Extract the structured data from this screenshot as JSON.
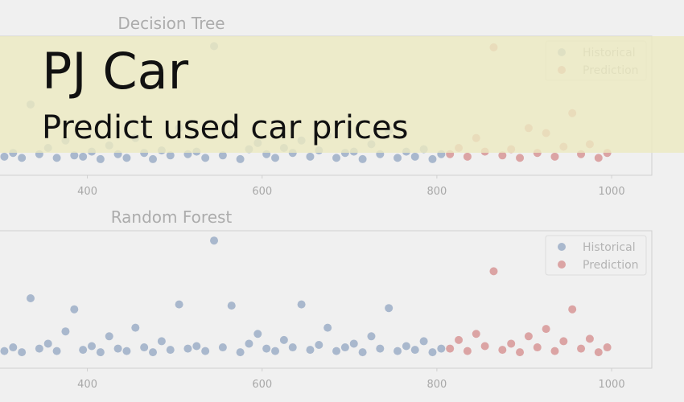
{
  "banner": {
    "title": "PJ Car",
    "subtitle": "Predict used car prices"
  },
  "chart_data": [
    {
      "type": "scatter",
      "title": "Decision Tree",
      "xlim": [
        300,
        1046
      ],
      "ylim": [
        -8,
        104
      ],
      "xticks": [
        400,
        600,
        800,
        1000
      ],
      "legend": "upper right",
      "series": [
        {
          "name": "Historical",
          "color": "#a9b8cd",
          "x": [
            305,
            315,
            325,
            335,
            345,
            355,
            365,
            375,
            385,
            395,
            405,
            415,
            425,
            435,
            445,
            455,
            465,
            475,
            485,
            495,
            505,
            515,
            525,
            535,
            545,
            555,
            565,
            575,
            585,
            595,
            605,
            615,
            625,
            635,
            645,
            655,
            665,
            675,
            685,
            695,
            705,
            715,
            725,
            735,
            745,
            755,
            765,
            775,
            785,
            795,
            805
          ],
          "values": [
            7,
            10,
            6,
            49,
            9,
            14,
            6,
            20,
            8,
            7,
            11,
            5,
            16,
            9,
            6,
            22,
            10,
            5,
            12,
            8,
            30,
            9,
            11,
            6,
            96,
            8,
            25,
            5,
            13,
            18,
            9,
            6,
            14,
            10,
            20,
            7,
            12,
            24,
            6,
            10,
            11,
            5,
            17,
            9,
            28,
            6,
            11,
            7,
            13,
            5,
            9
          ]
        },
        {
          "name": "Prediction",
          "color": "#dba4a4",
          "x": [
            815,
            825,
            835,
            845,
            855,
            865,
            875,
            885,
            895,
            905,
            915,
            925,
            935,
            945,
            955,
            965,
            975,
            985,
            995
          ],
          "values": [
            9,
            14,
            7,
            22,
            11,
            95,
            8,
            13,
            6,
            30,
            10,
            26,
            7,
            15,
            42,
            9,
            17,
            6,
            10
          ]
        }
      ]
    },
    {
      "type": "scatter",
      "title": "Random Forest",
      "xlim": [
        300,
        1046
      ],
      "ylim": [
        -8,
        104
      ],
      "xticks": [
        400,
        600,
        800,
        1000
      ],
      "legend": "upper right",
      "series": [
        {
          "name": "Historical",
          "color": "#a9b8cd",
          "x": [
            305,
            315,
            325,
            335,
            345,
            355,
            365,
            375,
            385,
            395,
            405,
            415,
            425,
            435,
            445,
            455,
            465,
            475,
            485,
            495,
            505,
            515,
            525,
            535,
            545,
            555,
            565,
            575,
            585,
            595,
            605,
            615,
            625,
            635,
            645,
            655,
            665,
            675,
            685,
            695,
            705,
            715,
            725,
            735,
            745,
            755,
            765,
            775,
            785,
            795,
            805
          ],
          "values": [
            6,
            9,
            5,
            49,
            8,
            12,
            6,
            22,
            40,
            7,
            10,
            5,
            18,
            8,
            6,
            25,
            9,
            5,
            14,
            7,
            44,
            8,
            10,
            6,
            96,
            9,
            43,
            5,
            12,
            20,
            8,
            6,
            15,
            9,
            44,
            7,
            11,
            25,
            6,
            9,
            12,
            5,
            18,
            8,
            41,
            6,
            10,
            7,
            14,
            5,
            8
          ]
        },
        {
          "name": "Prediction",
          "color": "#dba4a4",
          "x": [
            815,
            825,
            835,
            845,
            855,
            865,
            875,
            885,
            895,
            905,
            915,
            925,
            935,
            945,
            955,
            965,
            975,
            985,
            995
          ],
          "values": [
            8,
            15,
            6,
            20,
            10,
            71,
            7,
            12,
            5,
            18,
            9,
            24,
            6,
            14,
            40,
            8,
            16,
            5,
            9
          ]
        }
      ]
    }
  ]
}
